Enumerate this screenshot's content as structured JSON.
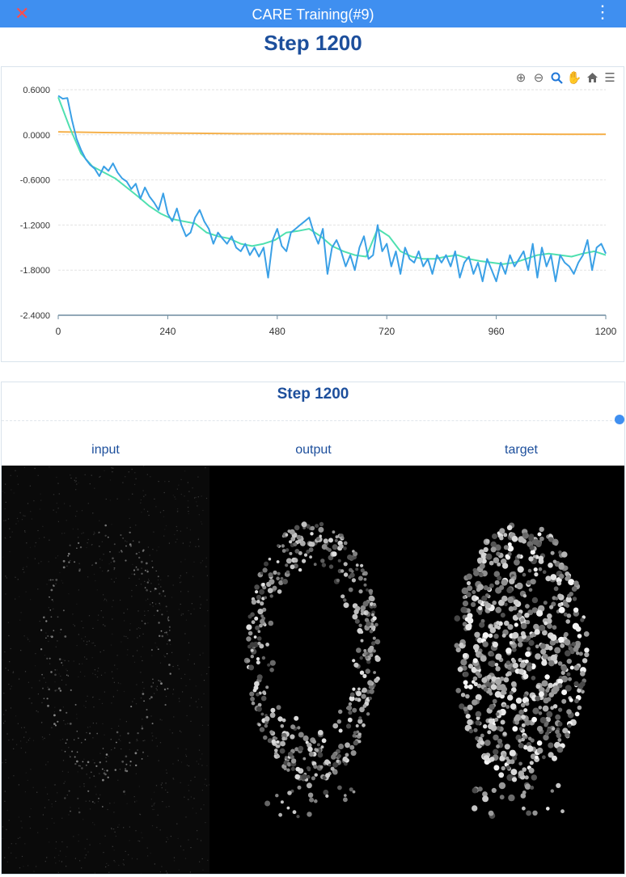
{
  "window": {
    "close_glyph": "✕",
    "title": "CARE Training(#9)",
    "menu_glyph": "⋮"
  },
  "header": {
    "step_text": "Step 1200"
  },
  "toolbar": {
    "icons": [
      "zoom-in-icon",
      "zoom-out-icon",
      "zoom-select-icon",
      "pan-icon",
      "home-icon",
      "menu-icon"
    ]
  },
  "chart_data": {
    "type": "line",
    "xlim": [
      0,
      1200
    ],
    "ylim": [
      -2.4,
      0.6
    ],
    "x_ticks": [
      "0",
      "240",
      "480",
      "720",
      "960",
      "1200"
    ],
    "y_ticks": [
      "0.6000",
      "0.0000",
      "-0.6000",
      "-1.2000",
      "-1.8000",
      "-2.4000"
    ],
    "grid": "horizontal",
    "colors": {
      "loss": "#3aa0e6",
      "smoothed": "#4fe0b0",
      "learning_rate": "#f5b14c"
    },
    "series": [
      {
        "key": "loss",
        "x": [
          0,
          10,
          20,
          30,
          40,
          50,
          60,
          70,
          80,
          90,
          100,
          110,
          120,
          130,
          140,
          150,
          160,
          170,
          180,
          190,
          200,
          210,
          220,
          230,
          240,
          250,
          260,
          270,
          280,
          290,
          300,
          310,
          320,
          330,
          340,
          350,
          360,
          370,
          380,
          390,
          400,
          410,
          420,
          430,
          440,
          450,
          460,
          470,
          480,
          490,
          500,
          510,
          520,
          530,
          540,
          550,
          560,
          570,
          580,
          590,
          600,
          610,
          620,
          630,
          640,
          650,
          660,
          670,
          680,
          690,
          700,
          710,
          720,
          730,
          740,
          750,
          760,
          770,
          780,
          790,
          800,
          810,
          820,
          830,
          840,
          850,
          860,
          870,
          880,
          890,
          900,
          910,
          920,
          930,
          940,
          950,
          960,
          970,
          980,
          990,
          1000,
          1010,
          1020,
          1030,
          1040,
          1050,
          1060,
          1070,
          1080,
          1090,
          1100,
          1110,
          1120,
          1130,
          1140,
          1150,
          1160,
          1170,
          1180,
          1190,
          1200
        ],
        "y": [
          0.52,
          0.48,
          0.49,
          0.2,
          -0.05,
          -0.2,
          -0.32,
          -0.4,
          -0.45,
          -0.55,
          -0.42,
          -0.48,
          -0.38,
          -0.5,
          -0.58,
          -0.62,
          -0.72,
          -0.65,
          -0.85,
          -0.7,
          -0.82,
          -0.9,
          -1.0,
          -0.78,
          -1.05,
          -1.15,
          -0.98,
          -1.2,
          -1.35,
          -1.3,
          -1.1,
          -1.0,
          -1.15,
          -1.25,
          -1.45,
          -1.3,
          -1.38,
          -1.45,
          -1.35,
          -1.5,
          -1.55,
          -1.45,
          -1.6,
          -1.5,
          -1.62,
          -1.5,
          -1.9,
          -1.4,
          -1.25,
          -1.48,
          -1.55,
          -1.3,
          -1.25,
          -1.2,
          -1.15,
          -1.1,
          -1.3,
          -1.45,
          -1.25,
          -1.85,
          -1.5,
          -1.4,
          -1.55,
          -1.75,
          -1.6,
          -1.8,
          -1.5,
          -1.35,
          -1.65,
          -1.6,
          -1.2,
          -1.55,
          -1.45,
          -1.75,
          -1.55,
          -1.85,
          -1.5,
          -1.65,
          -1.7,
          -1.55,
          -1.75,
          -1.65,
          -1.85,
          -1.6,
          -1.7,
          -1.6,
          -1.75,
          -1.55,
          -1.9,
          -1.7,
          -1.62,
          -1.85,
          -1.7,
          -1.95,
          -1.65,
          -1.8,
          -1.95,
          -1.7,
          -1.85,
          -1.6,
          -1.75,
          -1.65,
          -1.55,
          -1.8,
          -1.45,
          -1.9,
          -1.5,
          -1.75,
          -1.6,
          -1.95,
          -1.6,
          -1.7,
          -1.75,
          -1.85,
          -1.7,
          -1.6,
          -1.4,
          -1.8,
          -1.5,
          -1.45,
          -1.58
        ]
      },
      {
        "key": "smoothed",
        "x": [
          0,
          25,
          50,
          75,
          100,
          125,
          150,
          175,
          200,
          225,
          250,
          275,
          300,
          325,
          350,
          375,
          400,
          425,
          450,
          475,
          500,
          525,
          550,
          575,
          600,
          625,
          650,
          675,
          700,
          725,
          750,
          775,
          800,
          825,
          850,
          875,
          900,
          925,
          950,
          975,
          1000,
          1025,
          1050,
          1075,
          1100,
          1125,
          1150,
          1175,
          1200
        ],
        "y": [
          0.5,
          0.1,
          -0.25,
          -0.42,
          -0.5,
          -0.58,
          -0.7,
          -0.82,
          -0.95,
          -1.05,
          -1.12,
          -1.15,
          -1.18,
          -1.3,
          -1.35,
          -1.38,
          -1.45,
          -1.48,
          -1.45,
          -1.4,
          -1.3,
          -1.28,
          -1.25,
          -1.35,
          -1.48,
          -1.55,
          -1.6,
          -1.62,
          -1.25,
          -1.35,
          -1.55,
          -1.62,
          -1.65,
          -1.65,
          -1.62,
          -1.6,
          -1.65,
          -1.68,
          -1.7,
          -1.72,
          -1.7,
          -1.65,
          -1.6,
          -1.58,
          -1.6,
          -1.62,
          -1.58,
          -1.55,
          -1.6
        ]
      },
      {
        "key": "learning_rate",
        "x": [
          0,
          100,
          200,
          300,
          400,
          500,
          600,
          700,
          800,
          900,
          1000,
          1100,
          1200
        ],
        "y": [
          0.04,
          0.03,
          0.025,
          0.02,
          0.015,
          0.015,
          0.012,
          0.012,
          0.01,
          0.01,
          0.01,
          0.008,
          0.008
        ]
      }
    ]
  },
  "images": {
    "title": "Step 1200",
    "labels": [
      "input",
      "output",
      "target"
    ]
  }
}
